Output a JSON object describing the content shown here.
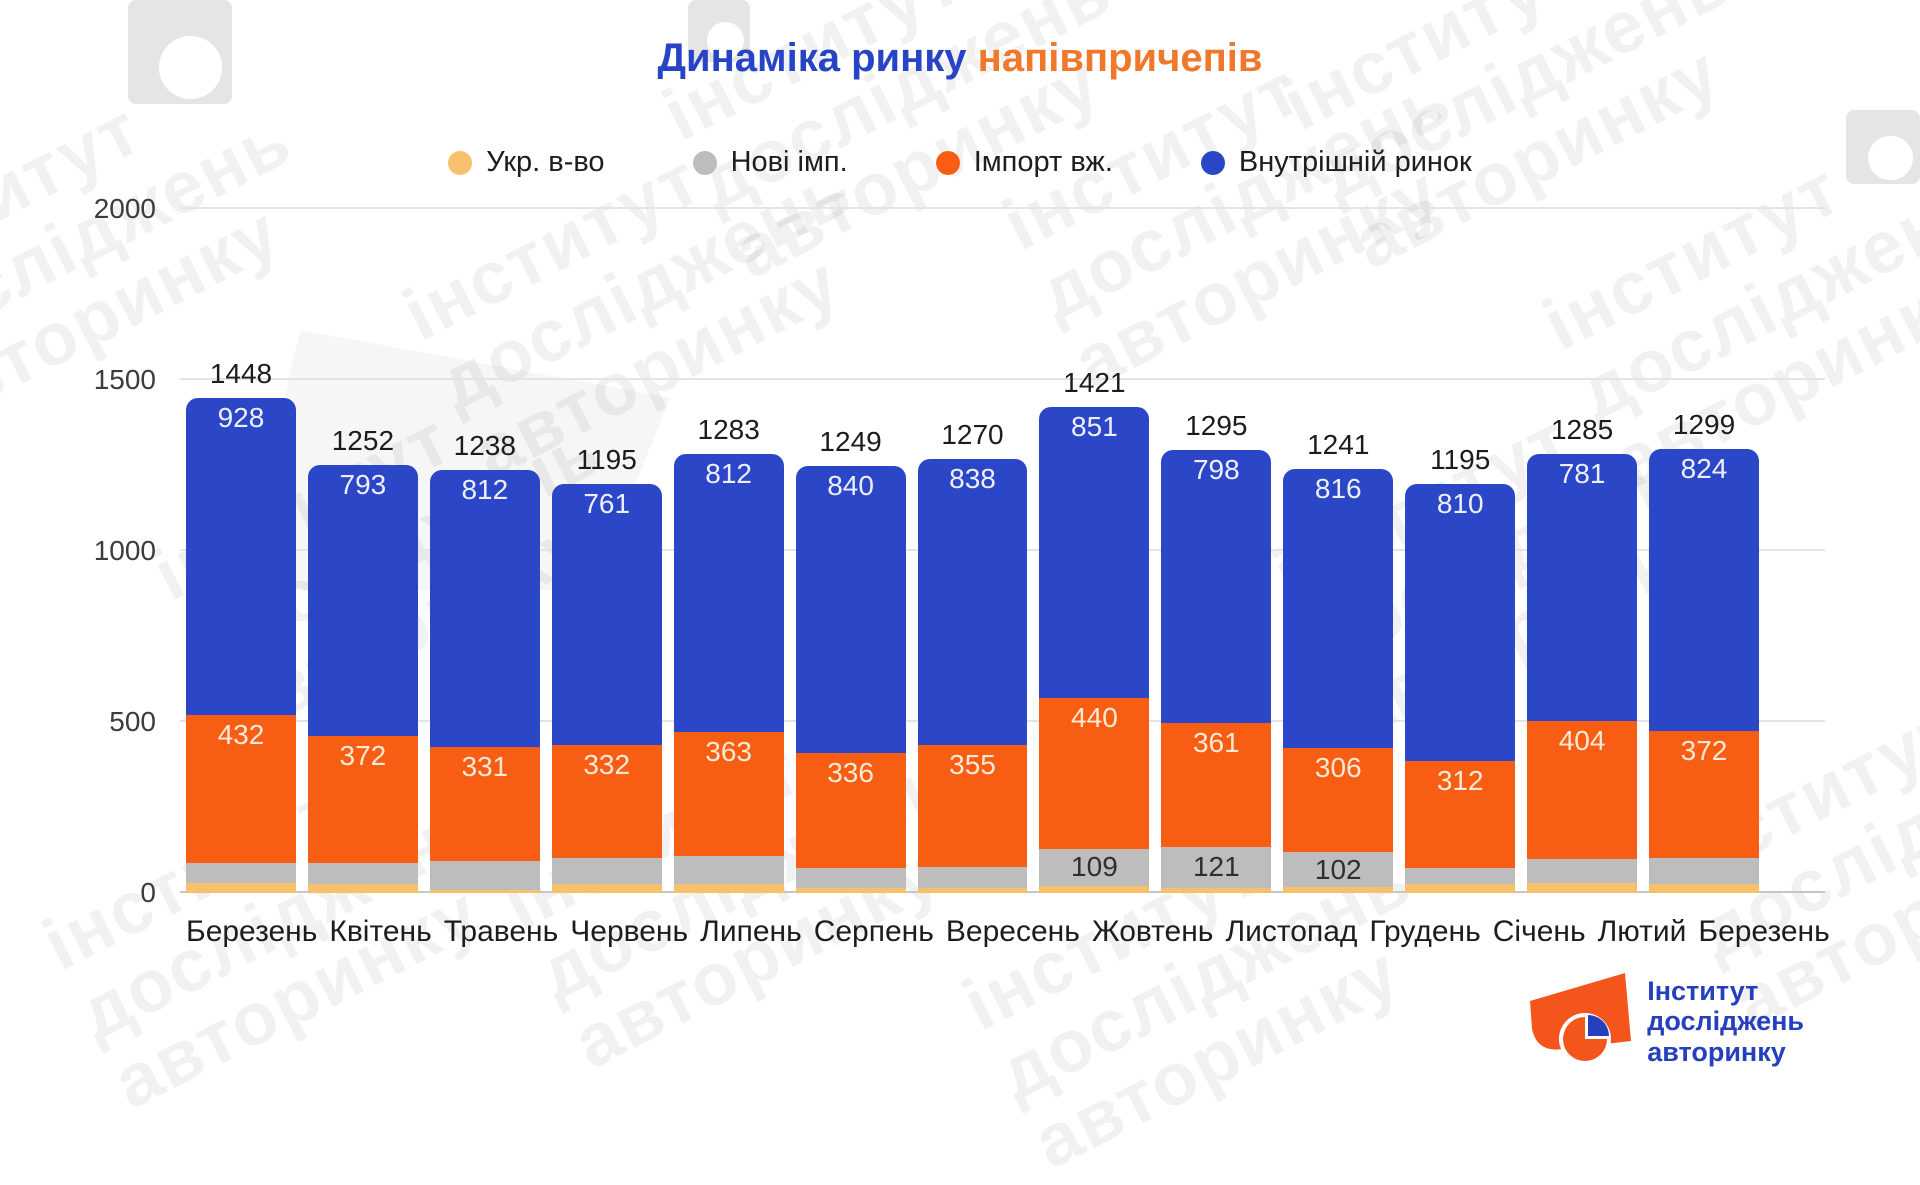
{
  "title": {
    "part1": "Динаміка ринку",
    "part2": "напівпричепів"
  },
  "legend": [
    {
      "label": "Укр. в-во",
      "color": "#F7C06C"
    },
    {
      "label": "Нові імп.",
      "color": "#BDBDBD"
    },
    {
      "label": "Імпорт вж.",
      "color": "#F85E13"
    },
    {
      "label": "Внутрішній ринок",
      "color": "#2B46C6"
    }
  ],
  "chart_data": {
    "type": "bar",
    "stacked": true,
    "title": "Динаміка ринку напівпричепів",
    "categories": [
      "Березень",
      "Квітень",
      "Травень",
      "Червень",
      "Липень",
      "Серпень",
      "Вересень",
      "Жовтень",
      "Листопад",
      "Грудень",
      "Січень",
      "Лютий",
      "Березень"
    ],
    "totals": [
      1448,
      1252,
      1238,
      1195,
      1283,
      1249,
      1270,
      1421,
      1295,
      1241,
      1195,
      1285,
      1299
    ],
    "series": [
      {
        "name": "Укр. в-во",
        "color": "#F7C06C",
        "values": [
          30,
          25,
          10,
          25,
          25,
          15,
          15,
          21,
          15,
          17,
          25,
          30,
          25
        ],
        "labels": [
          "",
          "",
          "",
          "",
          "",
          "",
          "",
          "",
          "",
          "",
          "",
          "",
          ""
        ],
        "label_color": "#2f2f2f",
        "label_pos": "center"
      },
      {
        "name": "Нові імп.",
        "color": "#BDBDBD",
        "values": [
          58,
          62,
          85,
          77,
          83,
          58,
          62,
          109,
          121,
          102,
          48,
          70,
          78
        ],
        "labels": [
          "",
          "",
          "",
          "",
          "",
          "",
          "",
          "109",
          "121",
          "102",
          "",
          "",
          ""
        ],
        "label_color": "#2f2f2f",
        "label_pos": "center"
      },
      {
        "name": "Імпорт вж.",
        "color": "#F85E13",
        "values": [
          432,
          372,
          331,
          332,
          363,
          336,
          355,
          440,
          361,
          306,
          312,
          404,
          372
        ],
        "labels": [
          "432",
          "372",
          "331",
          "332",
          "363",
          "336",
          "355",
          "440",
          "361",
          "306",
          "312",
          "404",
          "372"
        ],
        "label_color": "#FBE9D7",
        "label_pos": "top"
      },
      {
        "name": "Внутрішній ринок",
        "color": "#2B46C6",
        "values": [
          928,
          793,
          812,
          761,
          812,
          840,
          838,
          851,
          798,
          816,
          810,
          781,
          824
        ],
        "labels": [
          "928",
          "793",
          "812",
          "761",
          "812",
          "840",
          "838",
          "851",
          "798",
          "816",
          "810",
          "781",
          "824"
        ],
        "label_color": "#EDF0FC",
        "label_pos": "top"
      }
    ],
    "ylim": [
      0,
      2000
    ],
    "yticks": [
      0,
      500,
      1000,
      1500,
      2000
    ],
    "grid": true,
    "legend_position": "top"
  },
  "watermark": {
    "line1": "інститут",
    "line2": "досліджень",
    "line3": "авторинку"
  },
  "logo": {
    "line1": "Інститут",
    "line2": "досліджень",
    "line3": "авторинку"
  }
}
